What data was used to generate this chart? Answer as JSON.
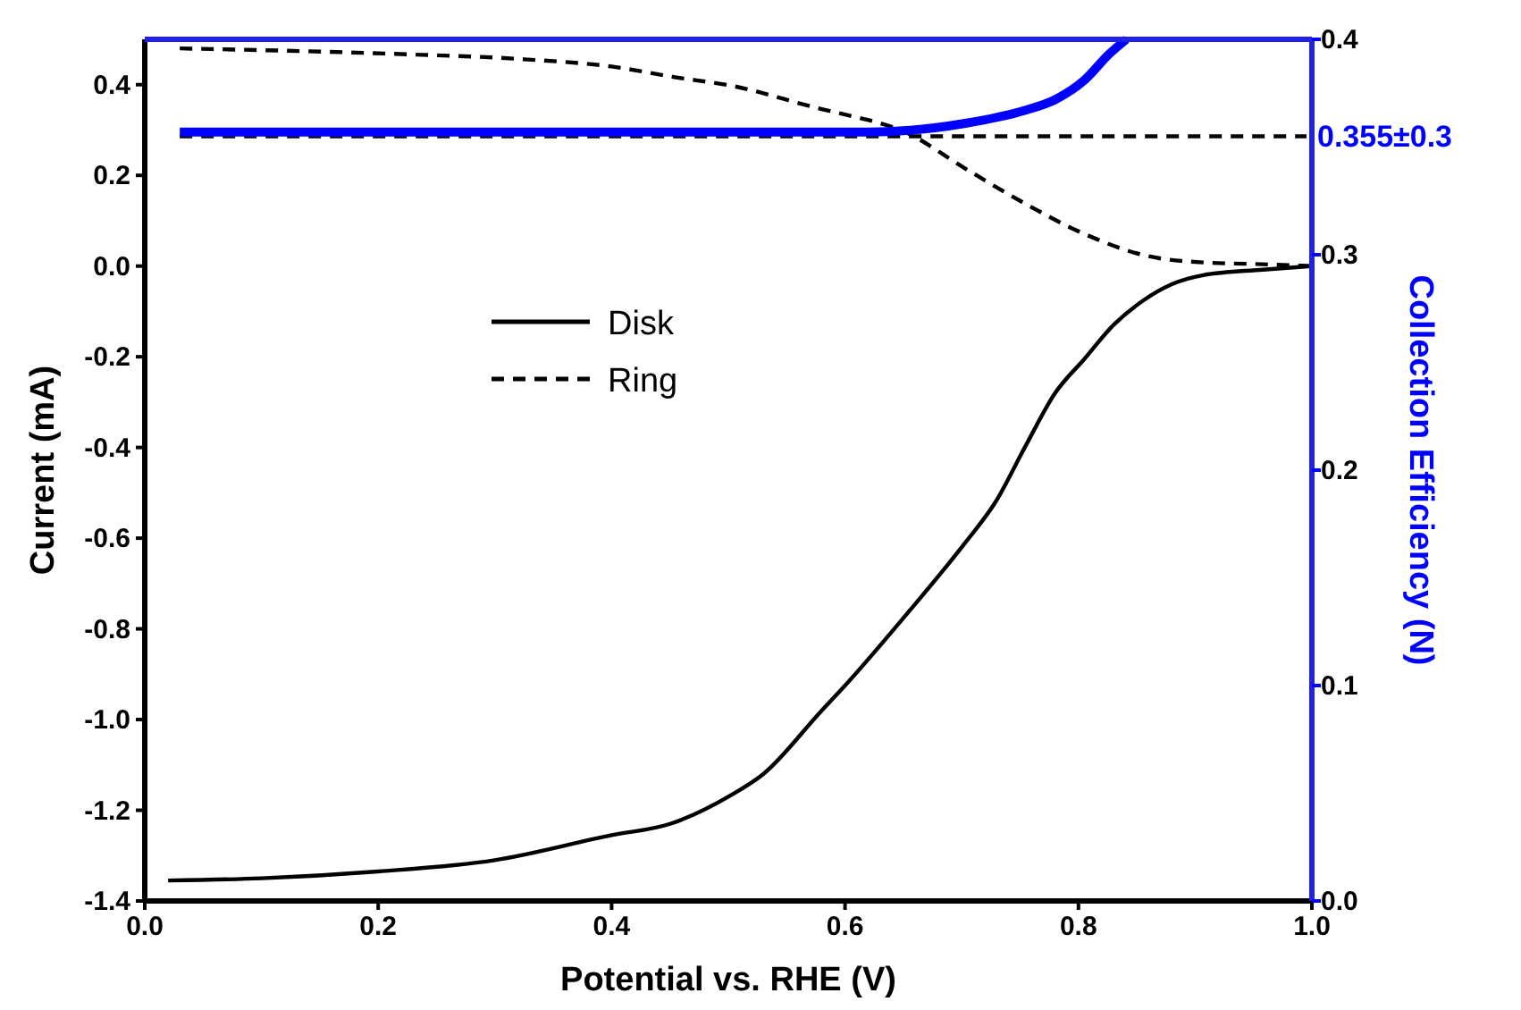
{
  "chart_data": {
    "type": "line",
    "xlabel": "Potential vs. RHE (V)",
    "ylabel": "Current (mA)",
    "y2label": "Collection Efficiency (N)",
    "xlim": [
      0,
      1
    ],
    "xticks": [
      {
        "value": 0,
        "label": "0.0"
      },
      0.2,
      0.4,
      0.6,
      0.8,
      {
        "value": 1,
        "label": "1.0"
      }
    ],
    "ylim": [
      -1.4,
      0.5
    ],
    "yticks": [
      -1.4,
      -1.2,
      {
        "value": -1,
        "label": "-1.0"
      },
      -0.8,
      -0.6,
      -0.4,
      -0.2,
      {
        "value": 0,
        "label": "0.0"
      },
      0.2,
      0.4
    ],
    "y2lim": [
      0,
      0.4
    ],
    "y2ticks": [
      {
        "value": 0,
        "label": "0.0"
      },
      0.1,
      0.2,
      0.3,
      0.4
    ],
    "legend": "top left",
    "grid": false,
    "marker": "none",
    "ref_lines": [
      {
        "axis": "y2",
        "value": 0.355,
        "label": "0.355±0.3",
        "color": "#000000",
        "line_style": "dashed"
      }
    ],
    "series": [
      {
        "name": "Disk",
        "color": "#000000",
        "line_style": "solid",
        "x": [
          0.02,
          0.1,
          0.2,
          0.3,
          0.4,
          0.45,
          0.5,
          0.53,
          0.58,
          0.6,
          0.652,
          0.703,
          0.729,
          0.754,
          0.78,
          0.805,
          0.83,
          0.856,
          0.88,
          0.907,
          0.958,
          1.0
        ],
        "values": [
          -1.355,
          -1.35,
          -1.335,
          -1.31,
          -1.255,
          -1.23,
          -1.17,
          -1.12,
          -0.98,
          -0.925,
          -0.77,
          -0.61,
          -0.52,
          -0.4,
          -0.28,
          -0.205,
          -0.13,
          -0.075,
          -0.04,
          -0.02,
          -0.008,
          0.0
        ]
      },
      {
        "name": "Ring",
        "color": "#000000",
        "line_style": "dashed",
        "x": [
          0.03,
          0.213,
          0.325,
          0.4,
          0.453,
          0.504,
          0.58,
          0.6,
          0.652,
          0.703,
          0.754,
          0.805,
          0.856,
          0.907,
          0.958,
          1.0
        ],
        "values": [
          0.48,
          0.468,
          0.456,
          0.44,
          0.417,
          0.397,
          0.346,
          0.334,
          0.295,
          0.215,
          0.138,
          0.071,
          0.024,
          0.008,
          0.004,
          0.0
        ]
      },
      {
        "color": "#0000ff",
        "axis": "y2",
        "line_style": "solid",
        "x": [
          0.03,
          0.2,
          0.4,
          0.62,
          0.703,
          0.754,
          0.78,
          0.805,
          0.826,
          0.841
        ],
        "values": [
          0.357,
          0.357,
          0.357,
          0.357,
          0.361,
          0.367,
          0.372,
          0.381,
          0.393,
          0.4
        ]
      }
    ]
  }
}
